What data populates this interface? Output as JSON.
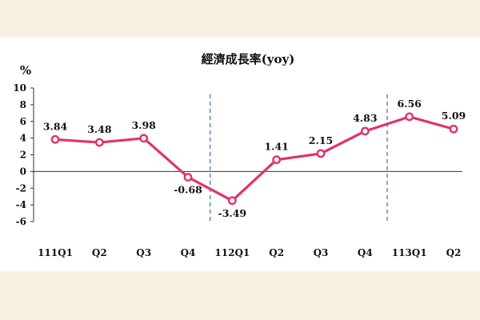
{
  "chart_data": {
    "type": "line",
    "title": "經濟成長率(yoy)",
    "ylabel": "%",
    "xlabel": "",
    "ylim": [
      -6,
      10
    ],
    "yticks": [
      10,
      8,
      6,
      4,
      2,
      0,
      -2,
      -4,
      -6
    ],
    "categories": [
      "111Q1",
      "Q2",
      "Q3",
      "Q4",
      "112Q1",
      "Q2",
      "Q3",
      "Q4",
      "113Q1",
      "Q2"
    ],
    "series": [
      {
        "values": [
          3.84,
          3.48,
          3.98,
          -0.68,
          -3.49,
          1.41,
          2.15,
          4.83,
          6.56,
          5.09
        ]
      }
    ],
    "data_labels": [
      "3.84",
      "3.48",
      "3.98",
      "-0.68",
      "-3.49",
      "1.41",
      "2.15",
      "4.83",
      "6.56",
      "5.09"
    ],
    "year_separators_after_index": [
      3,
      7
    ],
    "colors": {
      "line": "#e0336b",
      "marker_fill": "#ffffff",
      "separator": "#4a7ab5"
    },
    "grid": false,
    "legend": "none"
  }
}
